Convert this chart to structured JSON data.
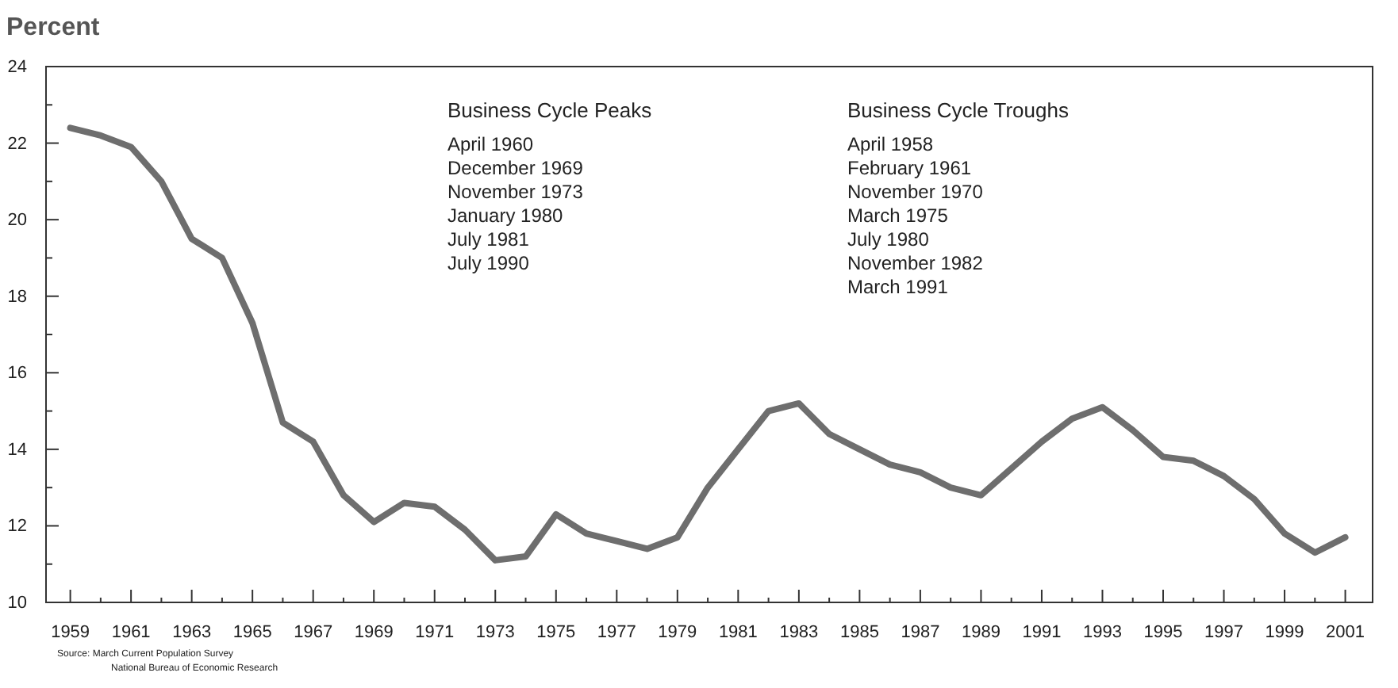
{
  "chart_data": {
    "type": "line",
    "title": "Percent",
    "x": [
      1959,
      1960,
      1961,
      1962,
      1963,
      1964,
      1965,
      1966,
      1967,
      1968,
      1969,
      1970,
      1971,
      1972,
      1973,
      1974,
      1975,
      1976,
      1977,
      1978,
      1979,
      1980,
      1981,
      1982,
      1983,
      1984,
      1985,
      1986,
      1987,
      1988,
      1989,
      1990,
      1991,
      1992,
      1993,
      1994,
      1995,
      1996,
      1997,
      1998,
      1999,
      2000,
      2001
    ],
    "series": [
      {
        "color": "#6e6e6e",
        "values": [
          22.4,
          22.2,
          21.9,
          21.0,
          19.5,
          19.0,
          17.3,
          14.7,
          14.2,
          12.8,
          12.1,
          12.6,
          12.5,
          11.9,
          11.1,
          11.2,
          12.3,
          11.8,
          11.6,
          11.4,
          11.7,
          13.0,
          14.0,
          15.0,
          15.2,
          14.4,
          14.0,
          13.6,
          13.4,
          13.0,
          12.8,
          13.5,
          14.2,
          14.8,
          15.1,
          14.5,
          13.8,
          13.7,
          13.3,
          12.7,
          11.8,
          11.3,
          11.7
        ]
      }
    ],
    "xlim": [
      1958.2,
      2001.9
    ],
    "xticks": [
      1959,
      {
        "value": 1960,
        "label": null
      },
      1961,
      {
        "value": 1962,
        "label": null
      },
      1963,
      {
        "value": 1964,
        "label": null
      },
      1965,
      {
        "value": 1966,
        "label": null
      },
      1967,
      {
        "value": 1968,
        "label": null
      },
      1969,
      {
        "value": 1970,
        "label": null
      },
      1971,
      {
        "value": 1972,
        "label": null
      },
      1973,
      {
        "value": 1974,
        "label": null
      },
      1975,
      {
        "value": 1976,
        "label": null
      },
      1977,
      {
        "value": 1978,
        "label": null
      },
      1979,
      {
        "value": 1980,
        "label": null
      },
      1981,
      {
        "value": 1982,
        "label": null
      },
      1983,
      {
        "value": 1984,
        "label": null
      },
      1985,
      {
        "value": 1986,
        "label": null
      },
      1987,
      {
        "value": 1988,
        "label": null
      },
      1989,
      {
        "value": 1990,
        "label": null
      },
      1991,
      {
        "value": 1992,
        "label": null
      },
      1993,
      {
        "value": 1994,
        "label": null
      },
      1995,
      {
        "value": 1996,
        "label": null
      },
      1997,
      {
        "value": 1998,
        "label": null
      },
      1999,
      {
        "value": 2000,
        "label": null
      },
      2001
    ],
    "ylim": [
      10,
      24
    ],
    "yticks": [
      10,
      {
        "value": 11,
        "label": null
      },
      12,
      {
        "value": 13,
        "label": null
      },
      14,
      {
        "value": 15,
        "label": null
      },
      16,
      {
        "value": 17,
        "label": null
      },
      18,
      {
        "value": 19,
        "label": null
      },
      20,
      {
        "value": 21,
        "label": null
      },
      22,
      {
        "value": 23,
        "label": null
      },
      24
    ],
    "grid": false,
    "marker": "none",
    "line_style": "solid",
    "annotations": [
      "Business Cycle Peaks\nApril 1960\nDecember 1969\nNovember 1973\nJanuary 1980\nJuly 1981\nJuly 1990",
      "Business Cycle Troughs\nApril 1958\nFebruary 1961\nNovember 1970\nMarch 1975\nJuly 1980\nNovember 1982\nMarch 1991",
      "Source:  March Current Population Survey\nNational Bureau of Economic Research"
    ]
  }
}
